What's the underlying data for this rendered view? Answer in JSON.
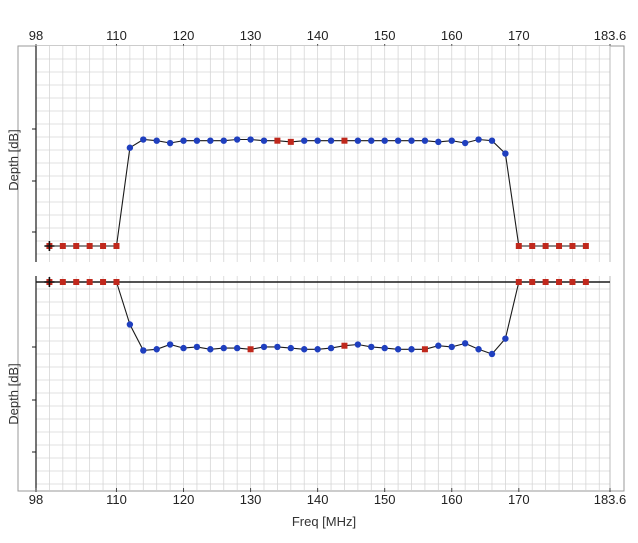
{
  "chart_data": {
    "type": "line",
    "x_ticks": [
      "98",
      "110",
      "120",
      "130",
      "140",
      "150",
      "160",
      "170",
      "183.6"
    ],
    "x_range": [
      98,
      183.6
    ],
    "xlabel": "Freq [MHz]",
    "grid": true,
    "colors": {
      "line": "#1a1a1a",
      "blue_point": "#1f3fbf",
      "red_point": "#c0281c",
      "grid_minor": "#d6d6d6",
      "axis": "#1a1a1a",
      "outer_frame": "#9a9a9a"
    },
    "panels": [
      {
        "ylabel": "Depth [dB]",
        "y_ticks": [],
        "y_range": [
          0,
          100
        ],
        "marker": {
          "x": 100,
          "y": 0,
          "symbol": "+"
        },
        "points": [
          {
            "x": 100,
            "y": 0,
            "c": "r"
          },
          {
            "x": 102,
            "y": 0,
            "c": "r"
          },
          {
            "x": 104,
            "y": 0,
            "c": "r"
          },
          {
            "x": 106,
            "y": 0,
            "c": "r"
          },
          {
            "x": 108,
            "y": 0,
            "c": "r"
          },
          {
            "x": 110,
            "y": 0,
            "c": "r"
          },
          {
            "x": 112,
            "y": 84,
            "c": "b"
          },
          {
            "x": 114,
            "y": 91,
            "c": "b"
          },
          {
            "x": 116,
            "y": 90,
            "c": "b"
          },
          {
            "x": 118,
            "y": 88,
            "c": "b"
          },
          {
            "x": 120,
            "y": 90,
            "c": "b"
          },
          {
            "x": 122,
            "y": 90,
            "c": "b"
          },
          {
            "x": 124,
            "y": 90,
            "c": "b"
          },
          {
            "x": 126,
            "y": 90,
            "c": "b"
          },
          {
            "x": 128,
            "y": 91,
            "c": "b"
          },
          {
            "x": 130,
            "y": 91,
            "c": "b"
          },
          {
            "x": 132,
            "y": 90,
            "c": "b"
          },
          {
            "x": 134,
            "y": 90,
            "c": "r"
          },
          {
            "x": 136,
            "y": 89,
            "c": "r"
          },
          {
            "x": 138,
            "y": 90,
            "c": "b"
          },
          {
            "x": 140,
            "y": 90,
            "c": "b"
          },
          {
            "x": 142,
            "y": 90,
            "c": "b"
          },
          {
            "x": 144,
            "y": 90,
            "c": "r"
          },
          {
            "x": 146,
            "y": 90,
            "c": "b"
          },
          {
            "x": 148,
            "y": 90,
            "c": "b"
          },
          {
            "x": 150,
            "y": 90,
            "c": "b"
          },
          {
            "x": 152,
            "y": 90,
            "c": "b"
          },
          {
            "x": 154,
            "y": 90,
            "c": "b"
          },
          {
            "x": 156,
            "y": 90,
            "c": "b"
          },
          {
            "x": 158,
            "y": 89,
            "c": "b"
          },
          {
            "x": 160,
            "y": 90,
            "c": "b"
          },
          {
            "x": 162,
            "y": 88,
            "c": "b"
          },
          {
            "x": 164,
            "y": 91,
            "c": "b"
          },
          {
            "x": 166,
            "y": 90,
            "c": "b"
          },
          {
            "x": 168,
            "y": 79,
            "c": "b"
          },
          {
            "x": 170,
            "y": 0,
            "c": "r"
          },
          {
            "x": 172,
            "y": 0,
            "c": "r"
          },
          {
            "x": 174,
            "y": 0,
            "c": "r"
          },
          {
            "x": 176,
            "y": 0,
            "c": "r"
          },
          {
            "x": 178,
            "y": 0,
            "c": "r"
          },
          {
            "x": 180,
            "y": 0,
            "c": "r"
          }
        ]
      },
      {
        "ylabel": "Depth [dB]",
        "y_ticks": [],
        "y_range": [
          0,
          100
        ],
        "marker": {
          "x": 100,
          "y": 100,
          "symbol": "+"
        },
        "points": [
          {
            "x": 100,
            "y": 100,
            "c": "r"
          },
          {
            "x": 102,
            "y": 100,
            "c": "r"
          },
          {
            "x": 104,
            "y": 100,
            "c": "r"
          },
          {
            "x": 106,
            "y": 100,
            "c": "r"
          },
          {
            "x": 108,
            "y": 100,
            "c": "r"
          },
          {
            "x": 110,
            "y": 100,
            "c": "r"
          },
          {
            "x": 112,
            "y": 64,
            "c": "b"
          },
          {
            "x": 114,
            "y": 42,
            "c": "b"
          },
          {
            "x": 116,
            "y": 43,
            "c": "b"
          },
          {
            "x": 118,
            "y": 47,
            "c": "b"
          },
          {
            "x": 120,
            "y": 44,
            "c": "b"
          },
          {
            "x": 122,
            "y": 45,
            "c": "b"
          },
          {
            "x": 124,
            "y": 43,
            "c": "b"
          },
          {
            "x": 126,
            "y": 44,
            "c": "b"
          },
          {
            "x": 128,
            "y": 44,
            "c": "b"
          },
          {
            "x": 130,
            "y": 43,
            "c": "r"
          },
          {
            "x": 132,
            "y": 45,
            "c": "b"
          },
          {
            "x": 134,
            "y": 45,
            "c": "b"
          },
          {
            "x": 136,
            "y": 44,
            "c": "b"
          },
          {
            "x": 138,
            "y": 43,
            "c": "b"
          },
          {
            "x": 140,
            "y": 43,
            "c": "b"
          },
          {
            "x": 142,
            "y": 44,
            "c": "b"
          },
          {
            "x": 144,
            "y": 46,
            "c": "r"
          },
          {
            "x": 146,
            "y": 47,
            "c": "b"
          },
          {
            "x": 148,
            "y": 45,
            "c": "b"
          },
          {
            "x": 150,
            "y": 44,
            "c": "b"
          },
          {
            "x": 152,
            "y": 43,
            "c": "b"
          },
          {
            "x": 154,
            "y": 43,
            "c": "b"
          },
          {
            "x": 156,
            "y": 43,
            "c": "r"
          },
          {
            "x": 158,
            "y": 46,
            "c": "b"
          },
          {
            "x": 160,
            "y": 45,
            "c": "b"
          },
          {
            "x": 162,
            "y": 48,
            "c": "b"
          },
          {
            "x": 164,
            "y": 43,
            "c": "b"
          },
          {
            "x": 166,
            "y": 39,
            "c": "b"
          },
          {
            "x": 168,
            "y": 52,
            "c": "b"
          },
          {
            "x": 170,
            "y": 100,
            "c": "r"
          },
          {
            "x": 172,
            "y": 100,
            "c": "r"
          },
          {
            "x": 174,
            "y": 100,
            "c": "r"
          },
          {
            "x": 176,
            "y": 100,
            "c": "r"
          },
          {
            "x": 178,
            "y": 100,
            "c": "r"
          },
          {
            "x": 180,
            "y": 100,
            "c": "r"
          }
        ]
      }
    ]
  }
}
